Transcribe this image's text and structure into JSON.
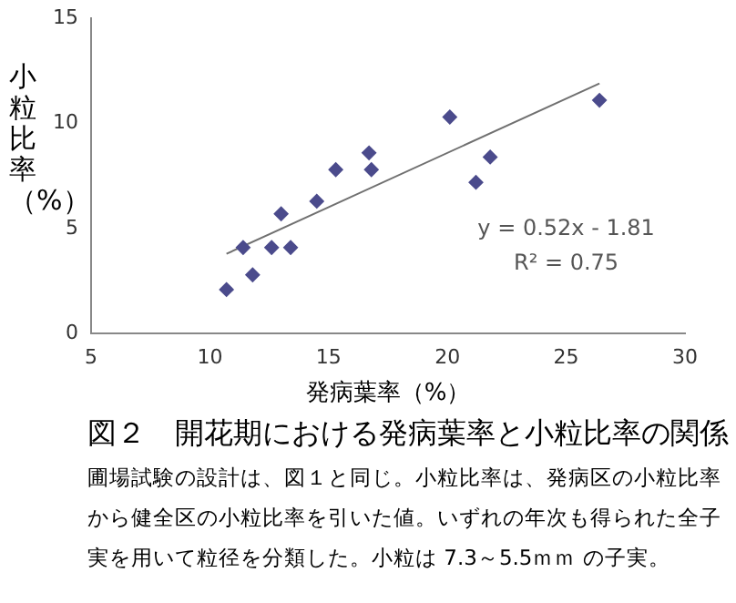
{
  "chart_data": {
    "type": "scatter",
    "title": "図２　開花期における発病葉率と小粒比率の関係",
    "xlabel": "発病葉率（%）",
    "ylabel": "小粒比率（%）",
    "series": [
      {
        "color": "#4b4b8c",
        "x": [
          10.7,
          11.4,
          11.8,
          12.6,
          13.0,
          13.4,
          14.5,
          15.3,
          16.7,
          16.8,
          20.1,
          21.2,
          21.8,
          26.4
        ],
        "values": [
          2.1,
          4.1,
          2.8,
          4.1,
          5.7,
          4.1,
          6.3,
          7.8,
          8.6,
          7.8,
          10.3,
          7.2,
          8.4,
          11.1
        ]
      },
      {
        "type": "line",
        "color": "#707070",
        "marker": "none",
        "x": [
          10.7,
          26.4
        ],
        "values": [
          3.8,
          11.9
        ]
      }
    ],
    "marker": "diamond",
    "xlim": [
      5,
      30
    ],
    "xticks": [
      5,
      10,
      15,
      20,
      25,
      30
    ],
    "ylim": [
      0,
      15
    ],
    "yticks": [
      0,
      5,
      10,
      15
    ],
    "grid": false,
    "legend": false,
    "annotations": [
      "y = 0.52x - 1.81",
      "R² = 0.75",
      "圃場試験の設計は、図１と同じ。小粒比率は、発病区の小粒比率から健全区の小粒比率を引いた値。いずれの年次も得られた全子実を用いて粒径を分類した。小粒は 7.3～5.5ｍｍ の子実。"
    ]
  }
}
